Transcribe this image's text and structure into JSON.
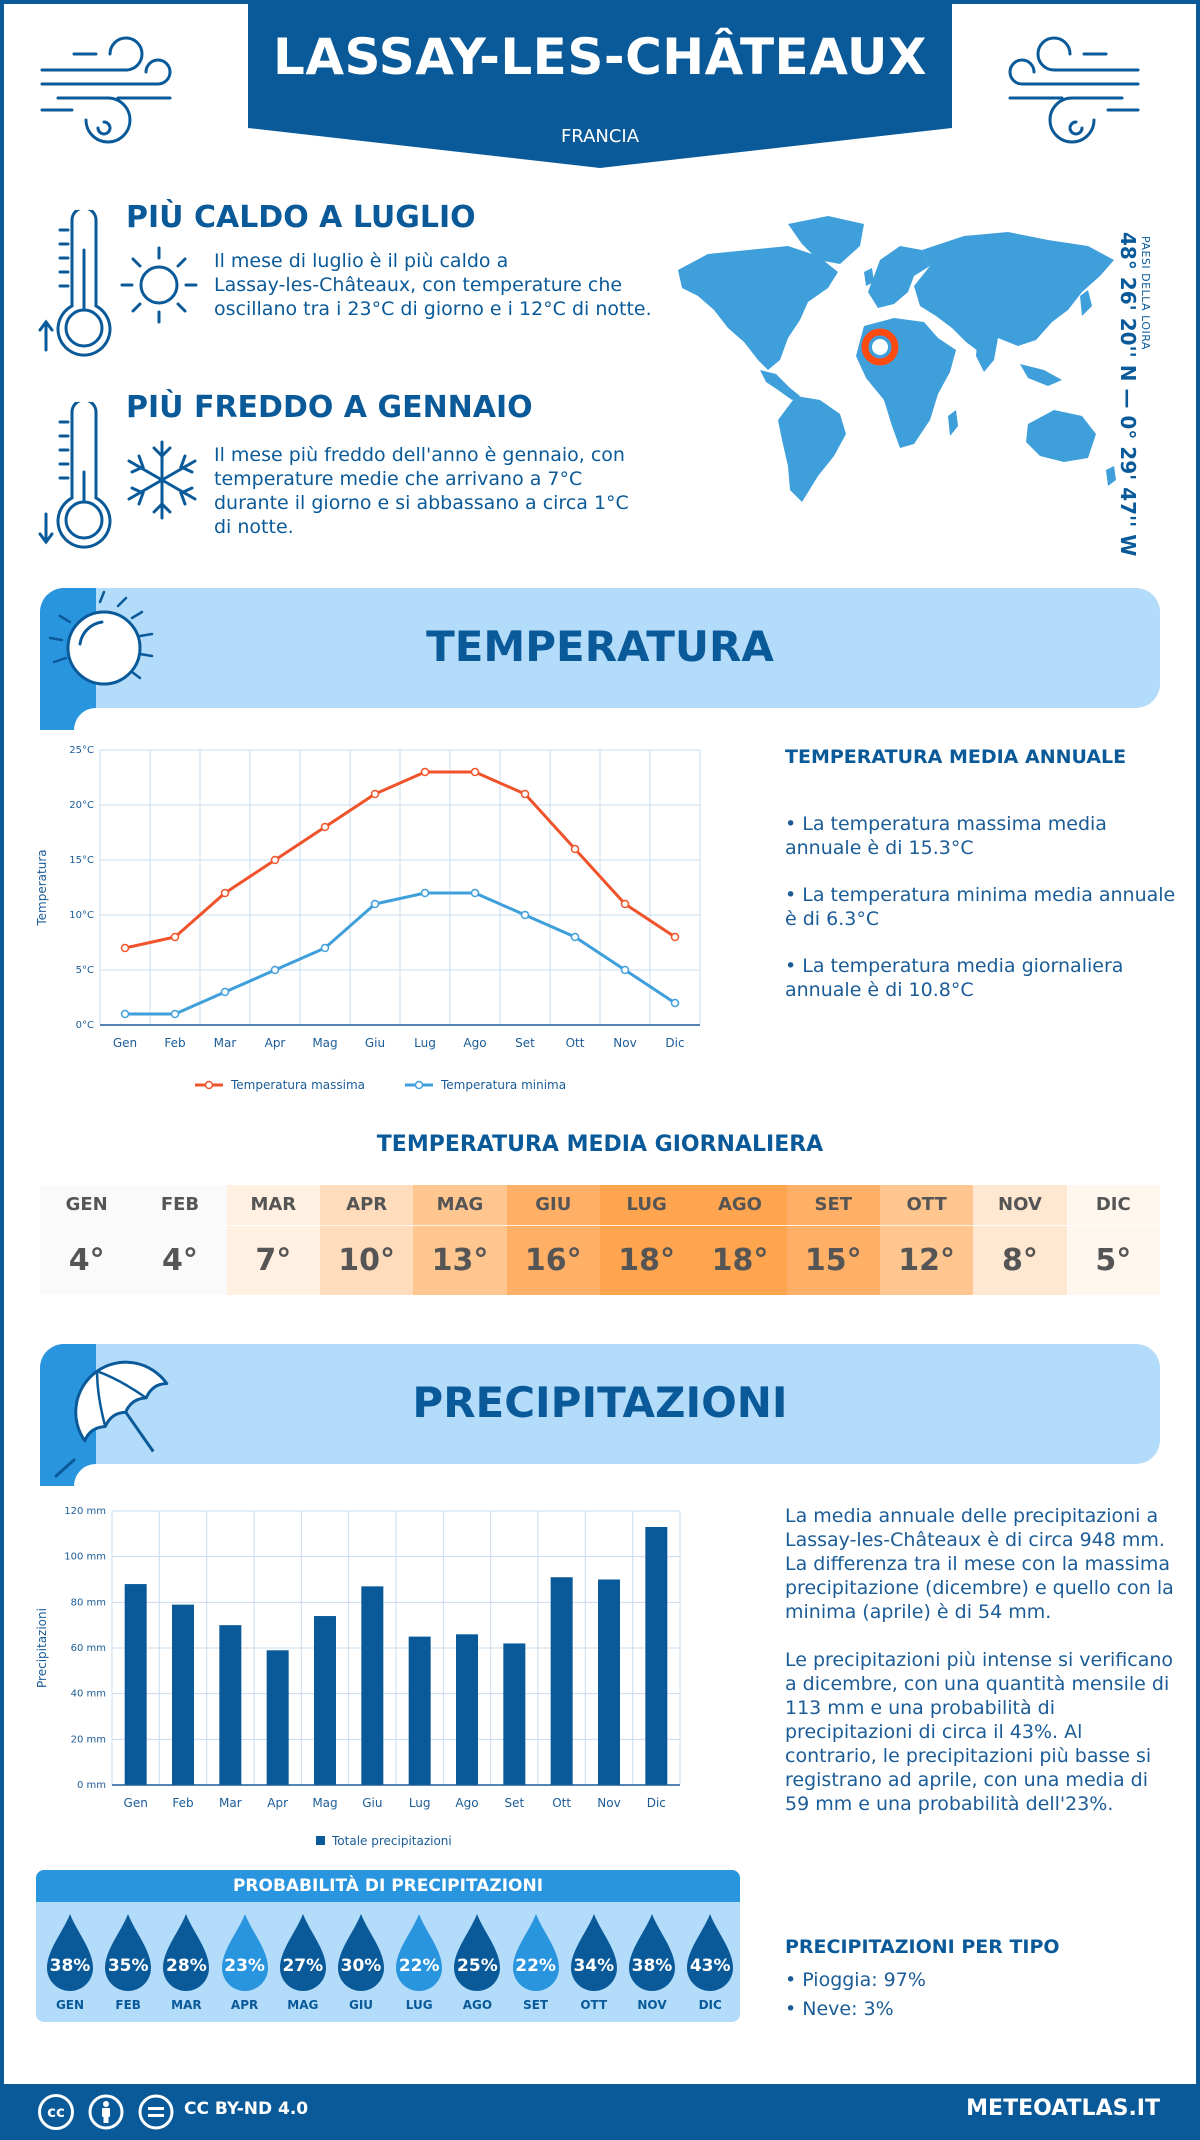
{
  "header": {
    "title": "LASSAY-LES-CHÂTEAUX",
    "country": "FRANCIA"
  },
  "facts": {
    "hot_title": "PIÙ CALDO A LUGLIO",
    "hot_text_lines": [
      "Il mese di luglio è il più caldo a",
      "Lassay-les-Châteaux, con temperature che",
      "oscillano tra i 23°C di giorno e i 12°C di notte."
    ],
    "cold_title": "PIÙ FREDDO A GENNAIO",
    "cold_text_lines": [
      "Il mese più freddo dell'anno è gennaio, con",
      "temperature medie che arrivano a 7°C",
      "durante il giorno e si abbassano a circa 1°C",
      "di notte."
    ]
  },
  "location": {
    "coordinates": "48° 26' 20'' N — 0° 29' 47'' W",
    "region": "PAESI DELLA LOIRA"
  },
  "temperature_section": {
    "title": "TEMPERATURA",
    "side_title": "TEMPERATURA MEDIA ANNUALE",
    "bullets": [
      [
        "• La temperatura massima media",
        "annuale è di 15.3°C"
      ],
      [
        "• La temperatura minima media annuale",
        "è di 6.3°C"
      ],
      [
        "• La temperatura media giornaliera",
        "annuale è di 10.8°C"
      ]
    ]
  },
  "chart_data": [
    {
      "type": "line",
      "categories": [
        "Gen",
        "Feb",
        "Mar",
        "Apr",
        "Mag",
        "Giu",
        "Lug",
        "Ago",
        "Set",
        "Ott",
        "Nov",
        "Dic"
      ],
      "series": [
        {
          "name": "Temperatura massima",
          "values": [
            7,
            8,
            12,
            15,
            18,
            21,
            23,
            23,
            21,
            16,
            11,
            8
          ],
          "color": "#f0522a"
        },
        {
          "name": "Temperatura minima",
          "values": [
            1,
            1,
            3,
            5,
            7,
            11,
            12,
            12,
            10,
            8,
            5,
            2
          ],
          "color": "#3f9fdb"
        }
      ],
      "ylabel": "Temperatura",
      "ylim": [
        0,
        25
      ],
      "yticks": [
        "0°C",
        "5°C",
        "10°C",
        "15°C",
        "20°C",
        "25°C"
      ],
      "grid": true,
      "legend": "bottom"
    },
    {
      "type": "bar",
      "categories": [
        "Gen",
        "Feb",
        "Mar",
        "Apr",
        "Mag",
        "Giu",
        "Lug",
        "Ago",
        "Set",
        "Ott",
        "Nov",
        "Dic"
      ],
      "series": [
        {
          "name": "Totale precipitazioni",
          "values": [
            88,
            79,
            70,
            59,
            74,
            87,
            65,
            66,
            62,
            91,
            90,
            113
          ],
          "color": "#0a5a99"
        }
      ],
      "ylabel": "Precipitazioni",
      "ylim": [
        0,
        120
      ],
      "yticks": [
        "0 mm",
        "20 mm",
        "40 mm",
        "60 mm",
        "80 mm",
        "100 mm",
        "120 mm"
      ],
      "grid": true,
      "legend": "bottom"
    }
  ],
  "daily": {
    "title": "TEMPERATURA MEDIA GIORNALIERA",
    "months": [
      "GEN",
      "FEB",
      "MAR",
      "APR",
      "MAG",
      "GIU",
      "LUG",
      "AGO",
      "SET",
      "OTT",
      "NOV",
      "DIC"
    ],
    "values": [
      "4°",
      "4°",
      "7°",
      "10°",
      "13°",
      "16°",
      "18°",
      "18°",
      "15°",
      "12°",
      "8°",
      "5°"
    ],
    "colors": [
      "#fafafa",
      "#fafafa",
      "#fff0e2",
      "#ffdcbc",
      "#ffc68f",
      "#ffb066",
      "#ffa44f",
      "#ffa44f",
      "#ffb066",
      "#ffc68f",
      "#ffe8d2",
      "#fff6ee"
    ]
  },
  "precipitation_section": {
    "title": "PRECIPITAZIONI",
    "para1_lines": [
      "La media annuale delle precipitazioni a",
      "Lassay-les-Châteaux è di circa 948 mm.",
      "La differenza tra il mese con la massima",
      "precipitazione (dicembre) e quello con la",
      "minima (aprile) è di 54 mm."
    ],
    "para2_lines": [
      "Le precipitazioni più intense si verificano",
      "a dicembre, con una quantità mensile di",
      "113 mm e una probabilità di",
      "precipitazioni di circa il 43%. Al",
      "contrario, le precipitazioni più basse si",
      "registrano ad aprile, con una media di",
      "59 mm e una probabilità dell'23%."
    ]
  },
  "probability": {
    "title": "PROBABILITÀ DI PRECIPITAZIONI",
    "months": [
      "GEN",
      "FEB",
      "MAR",
      "APR",
      "MAG",
      "GIU",
      "LUG",
      "AGO",
      "SET",
      "OTT",
      "NOV",
      "DIC"
    ],
    "values": [
      "38%",
      "35%",
      "28%",
      "23%",
      "27%",
      "30%",
      "22%",
      "25%",
      "22%",
      "34%",
      "38%",
      "43%"
    ],
    "colors": [
      "#0a5a99",
      "#0a5a99",
      "#0a5a99",
      "#2a95df",
      "#0a5a99",
      "#0a5a99",
      "#2a95df",
      "#0a5a99",
      "#2a95df",
      "#0a5a99",
      "#0a5a99",
      "#0a5a99"
    ]
  },
  "precip_type": {
    "title": "PRECIPITAZIONI PER TIPO",
    "items": [
      "• Pioggia: 97%",
      "• Neve: 3%"
    ]
  },
  "footer": {
    "license": "CC BY-ND 4.0",
    "site": "METEOATLAS.IT",
    "icons": [
      "cc-icon",
      "by-icon",
      "nd-icon"
    ]
  },
  "colors": {
    "primary": "#0a5a99",
    "light": "#b3dcfb",
    "accent": "#2a95df",
    "marker": "#ff4a10"
  }
}
